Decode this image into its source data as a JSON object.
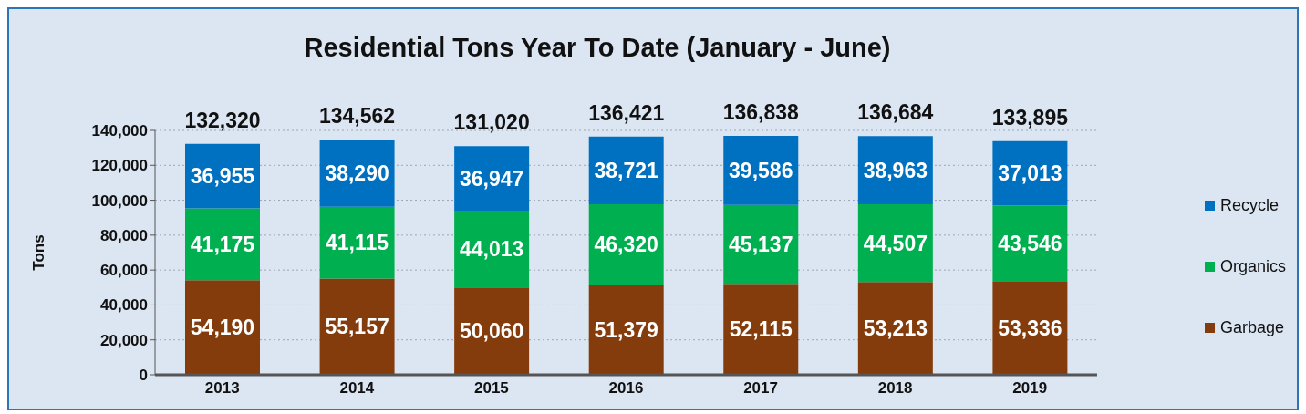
{
  "chart_data": {
    "type": "bar",
    "title": "Residential Tons Year To Date  (January - June)",
    "ylabel": "Tons",
    "categories": [
      "2013",
      "2014",
      "2015",
      "2016",
      "2017",
      "2018",
      "2019"
    ],
    "series": [
      {
        "name": "Garbage",
        "color": "#843c0c",
        "values": [
          54190,
          55157,
          50060,
          51379,
          52115,
          53213,
          53336
        ],
        "value_labels": [
          "54,190",
          "55,157",
          "50,060",
          "51,379",
          "52,115",
          "53,213",
          "53,336"
        ]
      },
      {
        "name": "Organics",
        "color": "#00b050",
        "values": [
          41175,
          41115,
          44013,
          46320,
          45137,
          44507,
          43546
        ],
        "value_labels": [
          "41,175",
          "41,115",
          "44,013",
          "46,320",
          "45,137",
          "44,507",
          "43,546"
        ]
      },
      {
        "name": "Recycle",
        "color": "#0070c0",
        "values": [
          36955,
          38290,
          36947,
          38721,
          39586,
          38963,
          37013
        ],
        "value_labels": [
          "36,955",
          "38,290",
          "36,947",
          "38,721",
          "39,586",
          "38,963",
          "37,013"
        ]
      }
    ],
    "stacked": true,
    "totals": [
      "132,320",
      "134,562",
      "131,020",
      "136,421",
      "136,838",
      "136,684",
      "133,895"
    ],
    "ylim": [
      0,
      140000
    ],
    "yticks": [
      0,
      {
        "value": 20000,
        "label": "20,000"
      },
      {
        "value": 40000,
        "label": "40,000"
      },
      {
        "value": 60000,
        "label": "60,000"
      },
      {
        "value": 80000,
        "label": "80,000"
      },
      {
        "value": 100000,
        "label": "100,000"
      },
      {
        "value": 120000,
        "label": "120,000"
      },
      {
        "value": 140000,
        "label": "140,000"
      }
    ],
    "grid": "y",
    "legend": "right"
  }
}
